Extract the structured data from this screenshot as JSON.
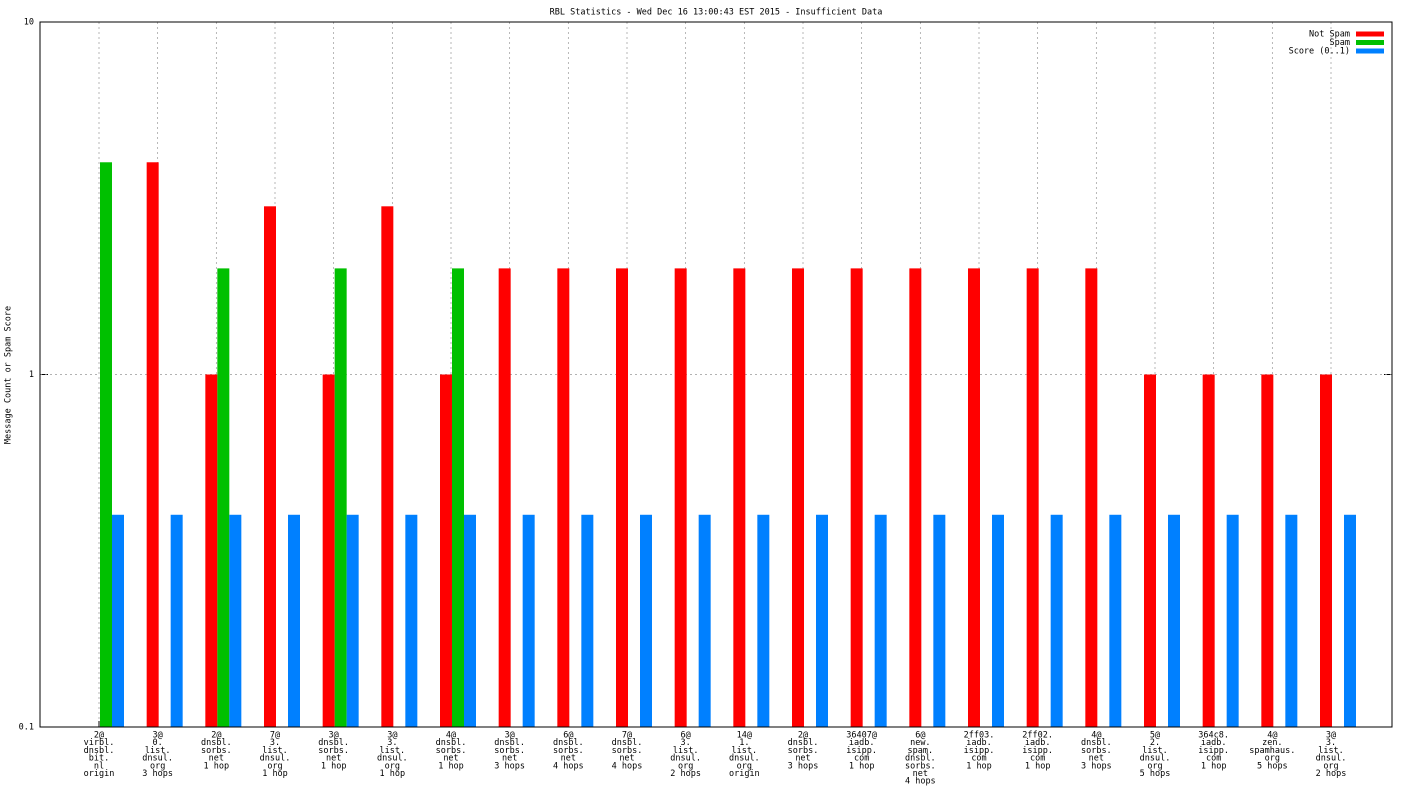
{
  "chart_data": {
    "type": "bar",
    "title": "RBL Statistics - Wed Dec 16 13:00:43 EST 2015 - Insufficient Data",
    "y_label": "Message Count or Spam Score",
    "log_scale": true,
    "grid": true,
    "legend_position": "top-right",
    "ylim": [
      0.1,
      10
    ],
    "yticks": [
      0.1,
      1,
      10
    ],
    "categories": [
      [
        "2@",
        "virbl.",
        "dnsbl.",
        "bit.",
        "nl",
        "origin"
      ],
      [
        "3@",
        "0.",
        "list.",
        "dnsul.",
        "org",
        "3 hops"
      ],
      [
        "2@",
        "dnsbl.",
        "sorbs.",
        "net",
        "1 hop"
      ],
      [
        "7@",
        "3.",
        "list.",
        "dnsul.",
        "org",
        "1 hop"
      ],
      [
        "3@",
        "dnsbl.",
        "sorbs.",
        "net",
        "1 hop"
      ],
      [
        "3@",
        "3.",
        "list.",
        "dnsul.",
        "org",
        "1 hop"
      ],
      [
        "4@",
        "dnsbl.",
        "sorbs.",
        "net",
        "1 hop"
      ],
      [
        "3@",
        "dnsbl.",
        "sorbs.",
        "net",
        "3 hops"
      ],
      [
        "6@",
        "dnsbl.",
        "sorbs.",
        "net",
        "4 hops"
      ],
      [
        "7@",
        "dnsbl.",
        "sorbs.",
        "net",
        "4 hops"
      ],
      [
        "6@",
        "3.",
        "list.",
        "dnsul.",
        "org",
        "2 hops"
      ],
      [
        "14@",
        "1.",
        "list.",
        "dnsul.",
        "org",
        "origin"
      ],
      [
        "2@",
        "dnsbl.",
        "sorbs.",
        "net",
        "3 hops"
      ],
      [
        "36407@",
        "iadb.",
        "isipp.",
        "com",
        "1 hop"
      ],
      [
        "6@",
        "new.",
        "spam.",
        "dnsbl.",
        "sorbs.",
        "net",
        "4 hops"
      ],
      [
        "2ff03.",
        "iadb.",
        "isipp.",
        "com",
        "1 hop"
      ],
      [
        "2ff02.",
        "iadb.",
        "isipp.",
        "com",
        "1 hop"
      ],
      [
        "4@",
        "dnsbl.",
        "sorbs.",
        "net",
        "3 hops"
      ],
      [
        "5@",
        "2.",
        "list.",
        "dnsul.",
        "org",
        "5 hops"
      ],
      [
        "364c8.",
        "iadb.",
        "isipp.",
        "com",
        "1 hop"
      ],
      [
        "4@",
        "zen.",
        "spamhaus.",
        "org",
        "5 hops"
      ],
      [
        "3@",
        "3.",
        "list.",
        "dnsul.",
        "org",
        "2 hops"
      ]
    ],
    "series": [
      {
        "name": "Not Spam",
        "color": "#ff0000",
        "values": [
          null,
          4,
          1,
          3,
          1,
          3,
          1,
          2,
          2,
          2,
          2,
          2,
          2,
          2,
          2,
          2,
          2,
          2,
          1,
          1,
          1,
          1
        ]
      },
      {
        "name": "Spam",
        "color": "#00c000",
        "values": [
          4,
          null,
          2,
          null,
          2,
          null,
          2,
          null,
          null,
          null,
          null,
          null,
          null,
          null,
          null,
          null,
          null,
          null,
          null,
          null,
          null,
          null
        ]
      },
      {
        "name": "Score (0..1)",
        "color": "#0080ff",
        "values": [
          0.4,
          0.4,
          0.4,
          0.4,
          0.4,
          0.4,
          0.4,
          0.4,
          0.4,
          0.4,
          0.4,
          0.4,
          0.4,
          0.4,
          0.4,
          0.4,
          0.4,
          0.4,
          0.4,
          0.4,
          0.4,
          0.4
        ]
      }
    ]
  }
}
